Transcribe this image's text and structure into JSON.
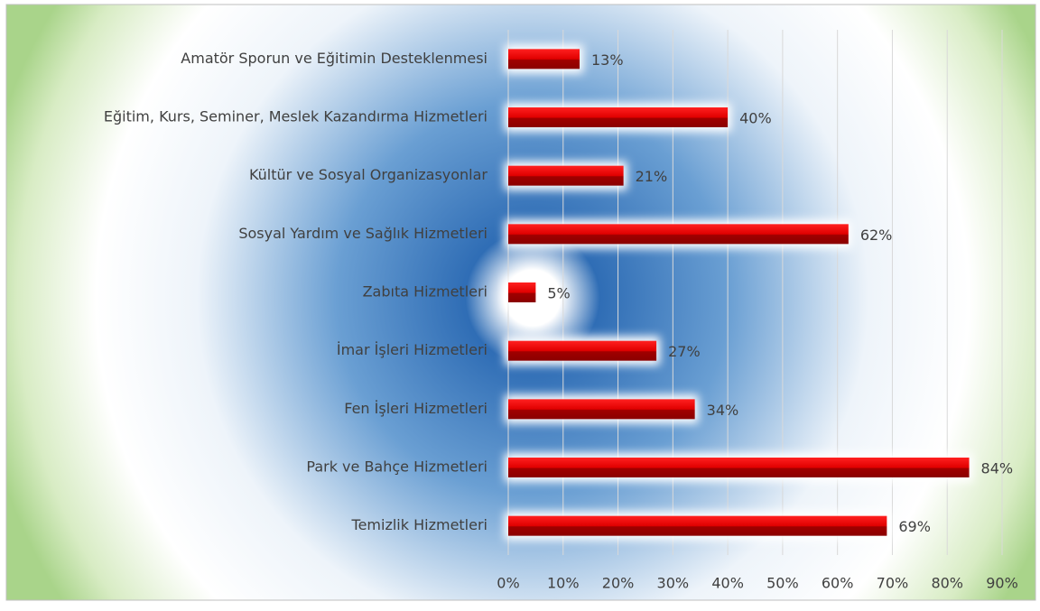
{
  "chart_data": {
    "type": "bar",
    "orientation": "horizontal",
    "categories": [
      "Amatör Sporun ve Eğitimin Desteklenmesi",
      "Eğitim, Kurs, Seminer, Meslek Kazandırma Hizmetleri",
      "Kültür ve Sosyal Organizasyonlar",
      "Sosyal Yardım ve Sağlık Hizmetleri",
      "Zabıta Hizmetleri",
      "İmar İşleri Hizmetleri",
      "Fen İşleri Hizmetleri",
      "Park ve Bahçe Hizmetleri",
      "Temizlik Hizmetleri"
    ],
    "values": [
      13,
      40,
      21,
      62,
      5,
      27,
      34,
      84,
      69
    ],
    "value_labels": [
      "13%",
      "40%",
      "21%",
      "62%",
      "5%",
      "27%",
      "34%",
      "84%",
      "69%"
    ],
    "color": "#e00000",
    "xlim": [
      0,
      90
    ],
    "xticks": [
      {
        "value": 0,
        "label": "0%"
      },
      {
        "value": 10,
        "label": "10%"
      },
      {
        "value": 20,
        "label": "20%"
      },
      {
        "value": 30,
        "label": "30%"
      },
      {
        "value": 40,
        "label": "40%"
      },
      {
        "value": 50,
        "label": "50%"
      },
      {
        "value": 60,
        "label": "60%"
      },
      {
        "value": 70,
        "label": "70%"
      },
      {
        "value": 80,
        "label": "80%"
      },
      {
        "value": 90,
        "label": "90%"
      }
    ],
    "grid": true
  }
}
